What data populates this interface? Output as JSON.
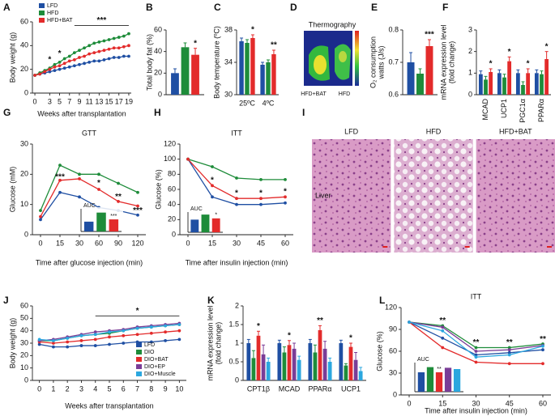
{
  "chart_data": [
    {
      "panel": "A",
      "type": "line",
      "ylabel": "Body weight (g)",
      "xlabel": "Weeks after transplantation",
      "x": [
        0,
        1,
        2,
        3,
        4,
        5,
        6,
        7,
        8,
        9,
        10,
        11,
        12,
        13,
        14,
        15,
        16,
        17,
        18,
        19
      ],
      "xlim": [
        -0.5,
        19.5
      ],
      "xticks": [
        0,
        3,
        5,
        7,
        9,
        11,
        13,
        15,
        17,
        19
      ],
      "ylim": [
        0,
        60
      ],
      "yticks": [
        0,
        20,
        40,
        60
      ],
      "legend": "top-left",
      "series": [
        {
          "name": "LFD",
          "color": "#1f4fa3",
          "values": [
            15,
            16,
            17,
            18,
            19,
            20,
            21,
            22,
            23,
            24,
            25,
            26,
            27,
            27,
            28,
            29,
            30,
            30,
            31,
            31
          ]
        },
        {
          "name": "HFD",
          "color": "#1e8c3a",
          "values": [
            15,
            17,
            19,
            21,
            24,
            26,
            29,
            31,
            34,
            36,
            38,
            40,
            42,
            43,
            44,
            45,
            46,
            47,
            48,
            50
          ]
        },
        {
          "name": "HFD+BAT",
          "color": "#e32b2b",
          "values": [
            15,
            16,
            18,
            20,
            22,
            23,
            25,
            27,
            28,
            30,
            31,
            33,
            34,
            35,
            36,
            37,
            38,
            38,
            39,
            40
          ]
        }
      ],
      "annotations": [
        {
          "text": "*",
          "x": 3,
          "y": 28
        },
        {
          "text": "*",
          "x": 5,
          "y": 33
        },
        {
          "text": "***",
          "x": 8,
          "x2": 19,
          "y": 57
        }
      ]
    },
    {
      "panel": "B",
      "type": "bar",
      "ylabel": "Total body fat (%)",
      "categories": [
        null
      ],
      "ylim": [
        0,
        60
      ],
      "yticks": [
        0,
        20,
        40,
        60
      ],
      "series": [
        {
          "color": "#1f4fa3",
          "values": [
            20
          ],
          "errors": [
            4
          ]
        },
        {
          "color": "#1e8c3a",
          "values": [
            44
          ],
          "errors": [
            4
          ]
        },
        {
          "color": "#e32b2b",
          "values": [
            37
          ],
          "errors": [
            6
          ],
          "significance": [
            "*"
          ]
        }
      ]
    },
    {
      "panel": "C",
      "type": "bar",
      "ylabel": "Body temperature (ºC)",
      "categories": [
        "25ºC",
        "4ºC"
      ],
      "ylim": [
        30,
        38
      ],
      "yticks": [
        30,
        34,
        38
      ],
      "series": [
        {
          "color": "#1f4fa3",
          "values": [
            36.6,
            33.7
          ],
          "errors": [
            0.4,
            0.3
          ]
        },
        {
          "color": "#1e8c3a",
          "values": [
            36.4,
            34.0
          ],
          "errors": [
            0.4,
            0.3
          ]
        },
        {
          "color": "#e32b2b",
          "values": [
            37.0,
            35.0
          ],
          "errors": [
            0.4,
            0.5
          ],
          "significance": [
            "*",
            "**"
          ]
        }
      ]
    },
    {
      "panel": "D",
      "type": "thermography",
      "title": "Thermography",
      "labels": [
        "HFD+BAT",
        "HFD"
      ]
    },
    {
      "panel": "E",
      "type": "bar",
      "ylabel": [
        "O₂ consumption",
        "watts (J/s)"
      ],
      "categories": [
        null
      ],
      "ylim": [
        0.6,
        0.8
      ],
      "yticks": [
        0.6,
        0.7,
        0.8
      ],
      "series": [
        {
          "color": "#1f4fa3",
          "values": [
            0.7
          ],
          "errors": [
            0.03
          ]
        },
        {
          "color": "#1e8c3a",
          "values": [
            0.665
          ],
          "errors": [
            0.015
          ]
        },
        {
          "color": "#e32b2b",
          "values": [
            0.75
          ],
          "errors": [
            0.02
          ],
          "significance": [
            "***"
          ]
        }
      ]
    },
    {
      "panel": "F",
      "type": "bar",
      "ylabel": [
        "mRNA expression level",
        "(fold change)"
      ],
      "categories": [
        "MCAD",
        "UCP1",
        "PGC1α",
        "PPARα"
      ],
      "ylim": [
        0,
        3
      ],
      "yticks": [
        0,
        1,
        2,
        3
      ],
      "series": [
        {
          "color": "#1f4fa3",
          "values": [
            0.95,
            1.0,
            1.0,
            1.0
          ],
          "errors": [
            0.15,
            0.15,
            0.15,
            0.15
          ]
        },
        {
          "color": "#1e8c3a",
          "values": [
            0.7,
            0.8,
            0.45,
            0.95
          ],
          "errors": [
            0.15,
            0.15,
            0.15,
            0.15
          ]
        },
        {
          "color": "#e32b2b",
          "values": [
            1.05,
            1.55,
            1.0,
            1.65
          ],
          "errors": [
            0.15,
            0.2,
            0.2,
            0.35
          ],
          "significance": [
            "*",
            "*",
            "*",
            "*"
          ]
        }
      ]
    },
    {
      "panel": "G",
      "type": "line",
      "title": "GTT",
      "ylabel": "Glucose (mM)",
      "xlabel": "Time after glucose injection (min)",
      "categories": [
        0,
        15,
        30,
        60,
        90,
        120
      ],
      "ylim": [
        0,
        30
      ],
      "yticks": [
        0,
        10,
        20,
        30
      ],
      "series": [
        {
          "color": "#1f4fa3",
          "values": [
            5,
            14,
            12.5,
            9,
            8,
            6.5
          ]
        },
        {
          "color": "#1e8c3a",
          "values": [
            8,
            23,
            20,
            20,
            17,
            14
          ]
        },
        {
          "color": "#e32b2b",
          "values": [
            6,
            18,
            18.5,
            15,
            11,
            9.5
          ]
        }
      ],
      "annotations": [
        {
          "text": "***",
          "x": 15,
          "y": 19
        },
        {
          "text": "*",
          "x": 60,
          "y": 17
        },
        {
          "text": "**",
          "x": 90,
          "y": 12.5
        },
        {
          "text": "***",
          "x": 120,
          "y": 8
        }
      ],
      "inset": {
        "type": "bar",
        "title": "AUC",
        "categories": [
          null
        ],
        "ylim": [
          0,
          3000
        ],
        "series": [
          {
            "color": "#1f4fa3",
            "values": [
              1300
            ]
          },
          {
            "color": "#1e8c3a",
            "values": [
              2500
            ]
          },
          {
            "color": "#e32b2b",
            "values": [
              1600
            ],
            "significance": [
              "***"
            ]
          }
        ]
      }
    },
    {
      "panel": "H",
      "type": "line",
      "title": "ITT",
      "ylabel": "Glucose (%)",
      "xlabel": "Time after insulin injection (min)",
      "categories": [
        0,
        15,
        30,
        45,
        60
      ],
      "ylim": [
        0,
        120
      ],
      "yticks": [
        0,
        20,
        40,
        60,
        80,
        100,
        120
      ],
      "series": [
        {
          "color": "#1f4fa3",
          "values": [
            100,
            50,
            40,
            40,
            42
          ]
        },
        {
          "color": "#1e8c3a",
          "values": [
            100,
            90,
            75,
            73,
            73
          ]
        },
        {
          "color": "#e32b2b",
          "values": [
            100,
            65,
            48,
            48,
            50
          ]
        }
      ],
      "annotations": [
        {
          "text": "*",
          "x": 15,
          "y": 72
        },
        {
          "text": "*",
          "x": 30,
          "y": 55
        },
        {
          "text": "*",
          "x": 45,
          "y": 55
        },
        {
          "text": "*",
          "x": 60,
          "y": 57
        }
      ],
      "inset": {
        "type": "bar",
        "title": "AUC",
        "categories": [
          null
        ],
        "ylim": [
          0,
          8000
        ],
        "series": [
          {
            "color": "#1f4fa3",
            "values": [
              5000
            ]
          },
          {
            "color": "#1e8c3a",
            "values": [
              7000
            ]
          },
          {
            "color": "#e32b2b",
            "values": [
              5500
            ],
            "significance": [
              "*"
            ]
          }
        ]
      }
    },
    {
      "panel": "I",
      "type": "histology",
      "labels": [
        "LFD",
        "HFD",
        "HFD+BAT"
      ],
      "tissue": "Liver"
    },
    {
      "panel": "J",
      "type": "line",
      "ylabel": "Body weight (g)",
      "xlabel": "Weeks after transplantation",
      "x": [
        0,
        1,
        2,
        3,
        4,
        5,
        6,
        7,
        8,
        9,
        10
      ],
      "xlim": [
        -0.5,
        10.5
      ],
      "xticks": [
        0,
        1,
        2,
        3,
        4,
        5,
        6,
        7,
        8,
        9,
        10
      ],
      "ylim": [
        0,
        60
      ],
      "yticks": [
        0,
        10,
        20,
        30,
        40,
        50,
        60
      ],
      "legend": "bottom-right",
      "series": [
        {
          "name": "LFD",
          "color": "#1f4fa3",
          "values": [
            29,
            27,
            27,
            28,
            28,
            29,
            30,
            31,
            31,
            32,
            33
          ]
        },
        {
          "name": "DIO",
          "color": "#1e8c3a",
          "values": [
            32,
            32,
            34,
            36,
            37,
            38,
            40,
            42,
            43,
            44,
            45
          ]
        },
        {
          "name": "DIO+BAT",
          "color": "#e32b2b",
          "values": [
            31,
            30,
            31,
            32,
            33,
            35,
            36,
            37,
            38,
            39,
            40
          ]
        },
        {
          "name": "DIO+EP",
          "color": "#7a3d97",
          "values": [
            32,
            33,
            35,
            37,
            39,
            40,
            41,
            43,
            44,
            45,
            46
          ]
        },
        {
          "name": "DIO+Muscle",
          "color": "#2ba7df",
          "values": [
            33,
            32,
            34,
            36,
            37,
            39,
            40,
            42,
            43,
            44,
            45
          ]
        }
      ],
      "annotations": [
        {
          "text": "*",
          "x": 4,
          "x2": 10,
          "y": 52
        }
      ]
    },
    {
      "panel": "K",
      "type": "bar",
      "ylabel": [
        "mRNA expression level",
        "(fold change)"
      ],
      "categories": [
        "CPT1β",
        "MCAD",
        "PPARα",
        "UCP1"
      ],
      "ylim": [
        0,
        2
      ],
      "yticks": [
        0,
        0.5,
        1,
        1.5,
        2
      ],
      "series": [
        {
          "color": "#1f4fa3",
          "values": [
            1,
            1,
            1,
            1
          ],
          "errors": [
            0.1,
            0.08,
            0.1,
            0.08
          ]
        },
        {
          "color": "#1e8c3a",
          "values": [
            0.6,
            0.75,
            0.75,
            0.4
          ],
          "errors": [
            0.2,
            0.15,
            0.2,
            0.05
          ]
        },
        {
          "color": "#e32b2b",
          "values": [
            1.2,
            0.95,
            1.35,
            0.9
          ],
          "errors": [
            0.12,
            0.12,
            0.12,
            0.1
          ],
          "significance": [
            "*",
            "*",
            "**",
            "*"
          ]
        },
        {
          "color": "#7a3d97",
          "values": [
            0.7,
            0.85,
            0.85,
            0.55
          ],
          "errors": [
            0.25,
            0.15,
            0.2,
            0.2
          ]
        },
        {
          "color": "#2ba7df",
          "values": [
            0.5,
            0.55,
            0.5,
            0.25
          ],
          "errors": [
            0.1,
            0.1,
            0.1,
            0.1
          ]
        }
      ]
    },
    {
      "panel": "L",
      "type": "line",
      "title": "ITT",
      "xlabel": "Time after insulin injection (min)",
      "ylabel": "Glucose (%)",
      "categories": [
        0,
        15,
        30,
        45,
        60
      ],
      "ylim": [
        0,
        120
      ],
      "yticks": [
        0,
        30,
        60,
        90,
        120
      ],
      "series": [
        {
          "color": "#1f4fa3",
          "values": [
            100,
            78,
            55,
            58,
            62
          ]
        },
        {
          "color": "#1e8c3a",
          "values": [
            100,
            95,
            65,
            65,
            70
          ]
        },
        {
          "color": "#e32b2b",
          "values": [
            100,
            65,
            45,
            43,
            43
          ]
        },
        {
          "color": "#7a3d97",
          "values": [
            100,
            93,
            60,
            62,
            68
          ]
        },
        {
          "color": "#2ba7df",
          "values": [
            100,
            88,
            52,
            55,
            67
          ]
        }
      ],
      "annotations": [
        {
          "text": "**",
          "x": 15,
          "y": 102
        },
        {
          "text": "**",
          "x": 30,
          "y": 72
        },
        {
          "text": "**",
          "x": 45,
          "y": 72
        },
        {
          "text": "**",
          "x": 60,
          "y": 76
        }
      ],
      "inset": {
        "type": "bar",
        "title": "AUC",
        "categories": [
          null
        ],
        "ylim": [
          0,
          4500
        ],
        "series": [
          {
            "color": "#1f4fa3",
            "values": [
              3000
            ]
          },
          {
            "color": "#1e8c3a",
            "values": [
              3800
            ]
          },
          {
            "color": "#e32b2b",
            "values": [
              3000
            ],
            "significance": [
              "**"
            ]
          },
          {
            "color": "#7a3d97",
            "values": [
              3700
            ]
          },
          {
            "color": "#2ba7df",
            "values": [
              3500
            ]
          }
        ]
      }
    }
  ]
}
